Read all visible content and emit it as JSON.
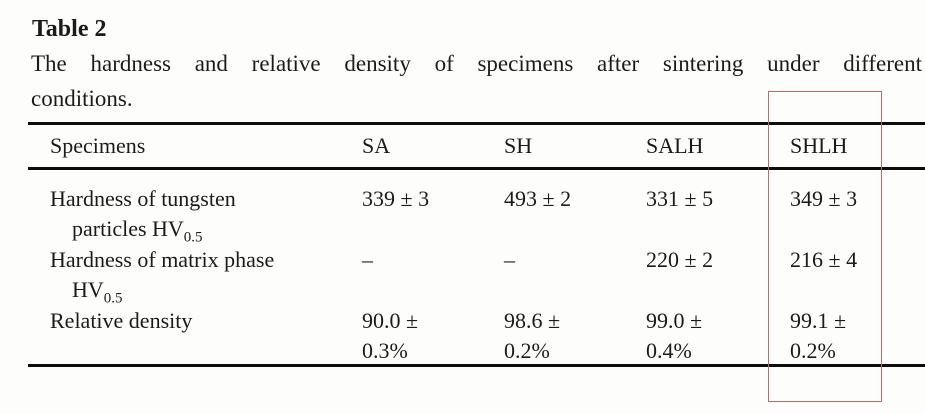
{
  "title": "Table 2",
  "caption": {
    "line1": "The hardness and relative density of specimens after sintering under different",
    "line2": "conditions."
  },
  "table": {
    "columns": {
      "specimens": "Specimens",
      "sa": "SA",
      "sh": "SH",
      "salh": "SALH",
      "shlh": "SHLH"
    },
    "rows": [
      {
        "label_line1": "Hardness of tungsten",
        "label_line2_prefix": "particles HV",
        "label_subscript": "0.5",
        "values": [
          "339 ± 3",
          "493 ± 2",
          "331 ± 5",
          "349 ± 3"
        ]
      },
      {
        "label_line1": "Hardness of matrix phase",
        "label_line2_prefix": "HV",
        "label_subscript": "0.5",
        "values": [
          "–",
          "–",
          "220 ± 2",
          "216 ± 4"
        ]
      },
      {
        "label_line1": "Relative density",
        "values": [
          "90.0 ±\n0.3%",
          "98.6 ±\n0.2%",
          "99.0 ±\n0.4%",
          "99.1 ±\n0.2%"
        ]
      }
    ]
  },
  "annotation": {
    "highlighted_column": "SHLH",
    "highlight_color": "#bc6b66"
  }
}
